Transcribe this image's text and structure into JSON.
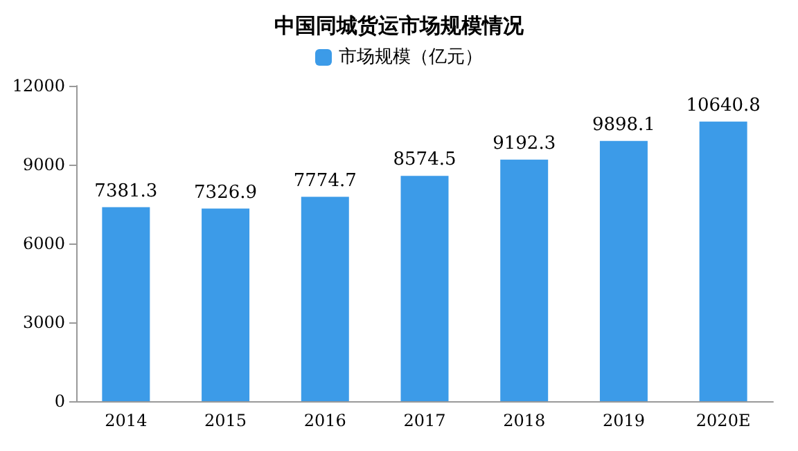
{
  "chart_data": {
    "type": "bar",
    "title": "中国同城货运市场规模情况",
    "categories": [
      "2014",
      "2015",
      "2016",
      "2017",
      "2018",
      "2019",
      "2020E"
    ],
    "series": [
      {
        "name": "市场规模（亿元）",
        "color": "#3c9be8",
        "values": [
          7381.3,
          7326.9,
          7774.7,
          8574.5,
          9192.3,
          9898.1,
          10640.8
        ]
      }
    ],
    "ylim": [
      0,
      12000
    ],
    "yticks": [
      0,
      3000,
      6000,
      9000,
      12000
    ],
    "grid": false,
    "legend": "top",
    "data_labels": true
  }
}
